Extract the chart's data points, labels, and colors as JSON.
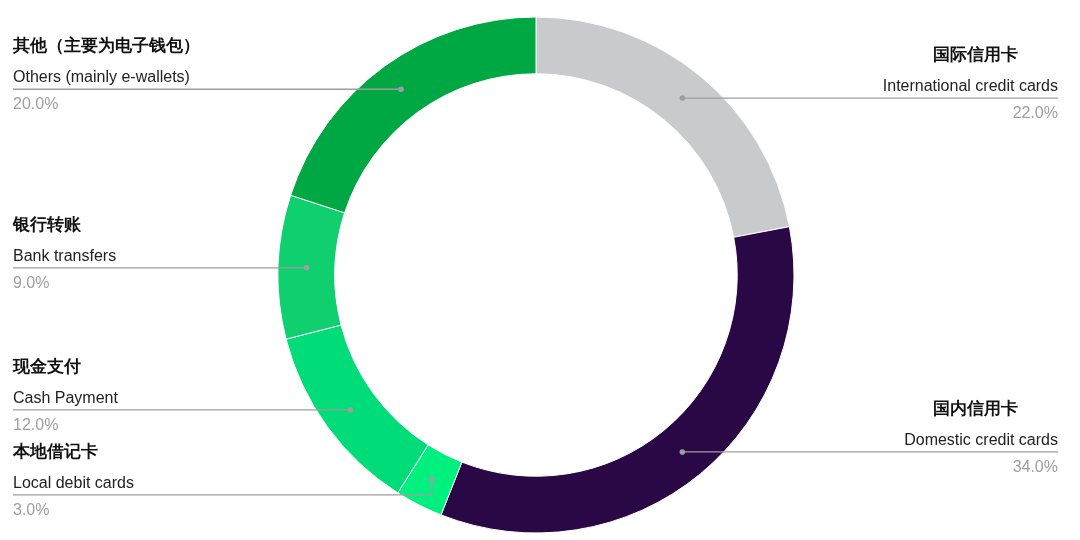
{
  "chart_data": {
    "type": "donut",
    "categories": [
      "国际信用卡\nInternational credit cards",
      "国内信用卡\nDomestic credit cards",
      "本地借记卡\nLocal debit cards",
      "现金支付\nCash Payment",
      "银行转账\nBank transfers",
      "其他（主要为电子钱包）\nOthers (mainly e-wallets)"
    ],
    "values": [
      22,
      34,
      3,
      12,
      9,
      20
    ],
    "colors": [
      "#c9cacc",
      "#2a0845",
      "#00f07f",
      "#00dc78",
      "#10cf6e",
      "#00a844"
    ],
    "value_labels": [
      "22.0%",
      "34.0%",
      "3.0%",
      "12.0%",
      "9.0%",
      "20.0%"
    ]
  }
}
